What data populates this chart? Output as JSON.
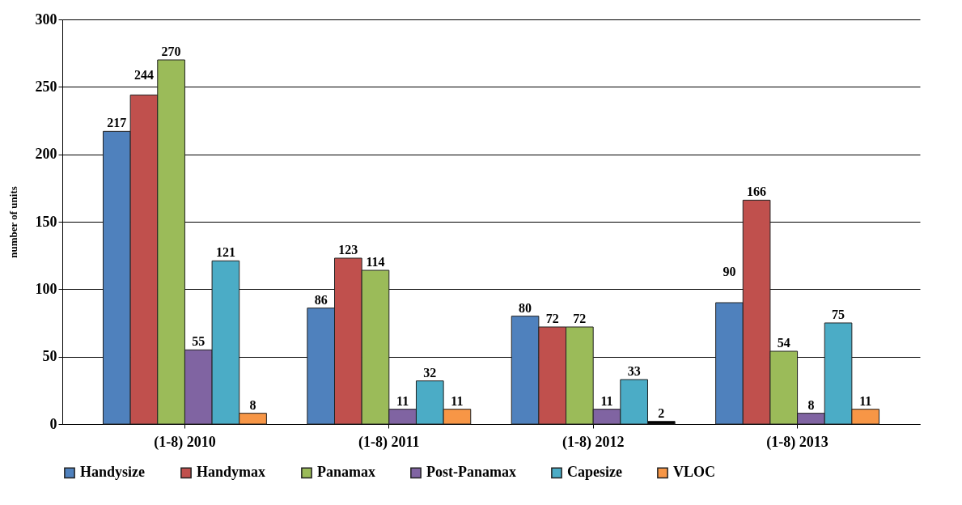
{
  "chart_data": {
    "type": "bar",
    "ylabel": "number of units",
    "categories": [
      "(1-8) 2010",
      "(1-8) 2011",
      "(1-8) 2012",
      "(1-8) 2013"
    ],
    "series": [
      {
        "name": "Handysize",
        "color": "#4f81bd",
        "values": [
          217,
          86,
          80,
          90
        ]
      },
      {
        "name": "Handymax",
        "color": "#c0504d",
        "values": [
          244,
          123,
          72,
          166
        ]
      },
      {
        "name": "Panamax",
        "color": "#9bbb59",
        "values": [
          270,
          114,
          72,
          54
        ]
      },
      {
        "name": "Post-Panamax",
        "color": "#8064a2",
        "values": [
          55,
          11,
          11,
          8
        ]
      },
      {
        "name": "Capesize",
        "color": "#4bacc6",
        "values": [
          121,
          32,
          33,
          75
        ]
      },
      {
        "name": "VLOC",
        "color": "#f79646",
        "values": [
          8,
          11,
          2,
          11
        ],
        "colors": [
          "#f79646",
          "#f79646",
          "#000000",
          "#f79646"
        ]
      }
    ],
    "ylim": [
      0,
      300
    ],
    "yticks": [
      0,
      50,
      100,
      150,
      200,
      250,
      300
    ],
    "grid": "y",
    "legend": "bottom",
    "data_labels": true
  }
}
